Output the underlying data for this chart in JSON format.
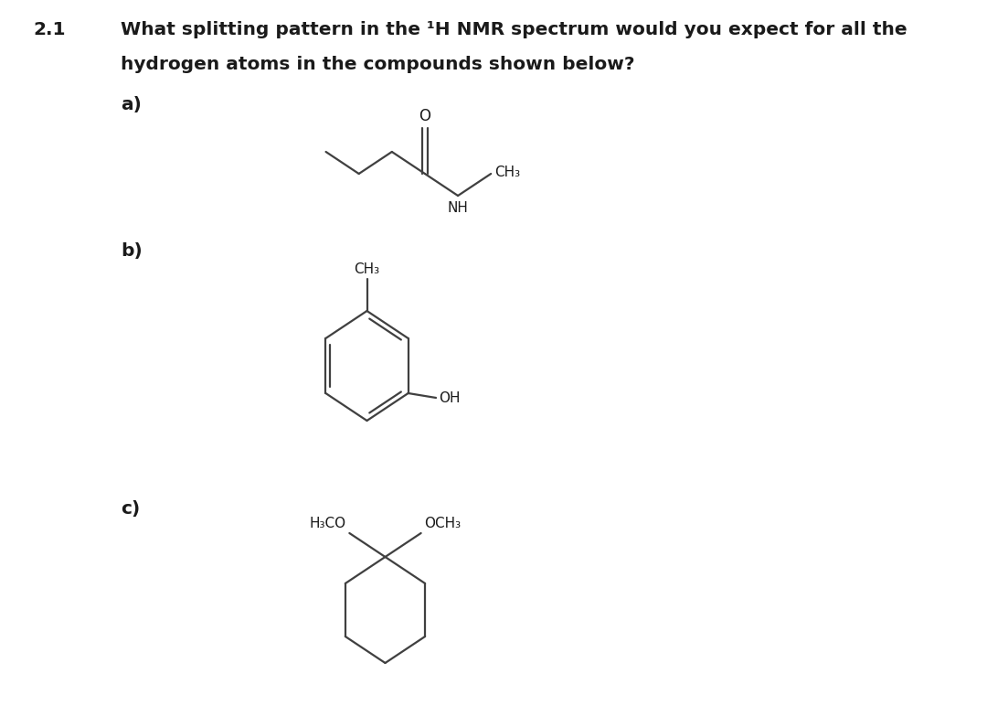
{
  "title_number": "2.1",
  "title_text_line1": "What splitting pattern in the ¹H NMR spectrum would you expect for all the",
  "title_text_line2": "hydrogen atoms in the compounds shown below?",
  "label_a": "a)",
  "label_b": "b)",
  "label_c": "c)",
  "font_size_title": 14.5,
  "font_size_labels": 14.5,
  "font_size_chem": 11,
  "bg_color": "#ffffff",
  "line_color": "#404040",
  "line_width": 1.6
}
